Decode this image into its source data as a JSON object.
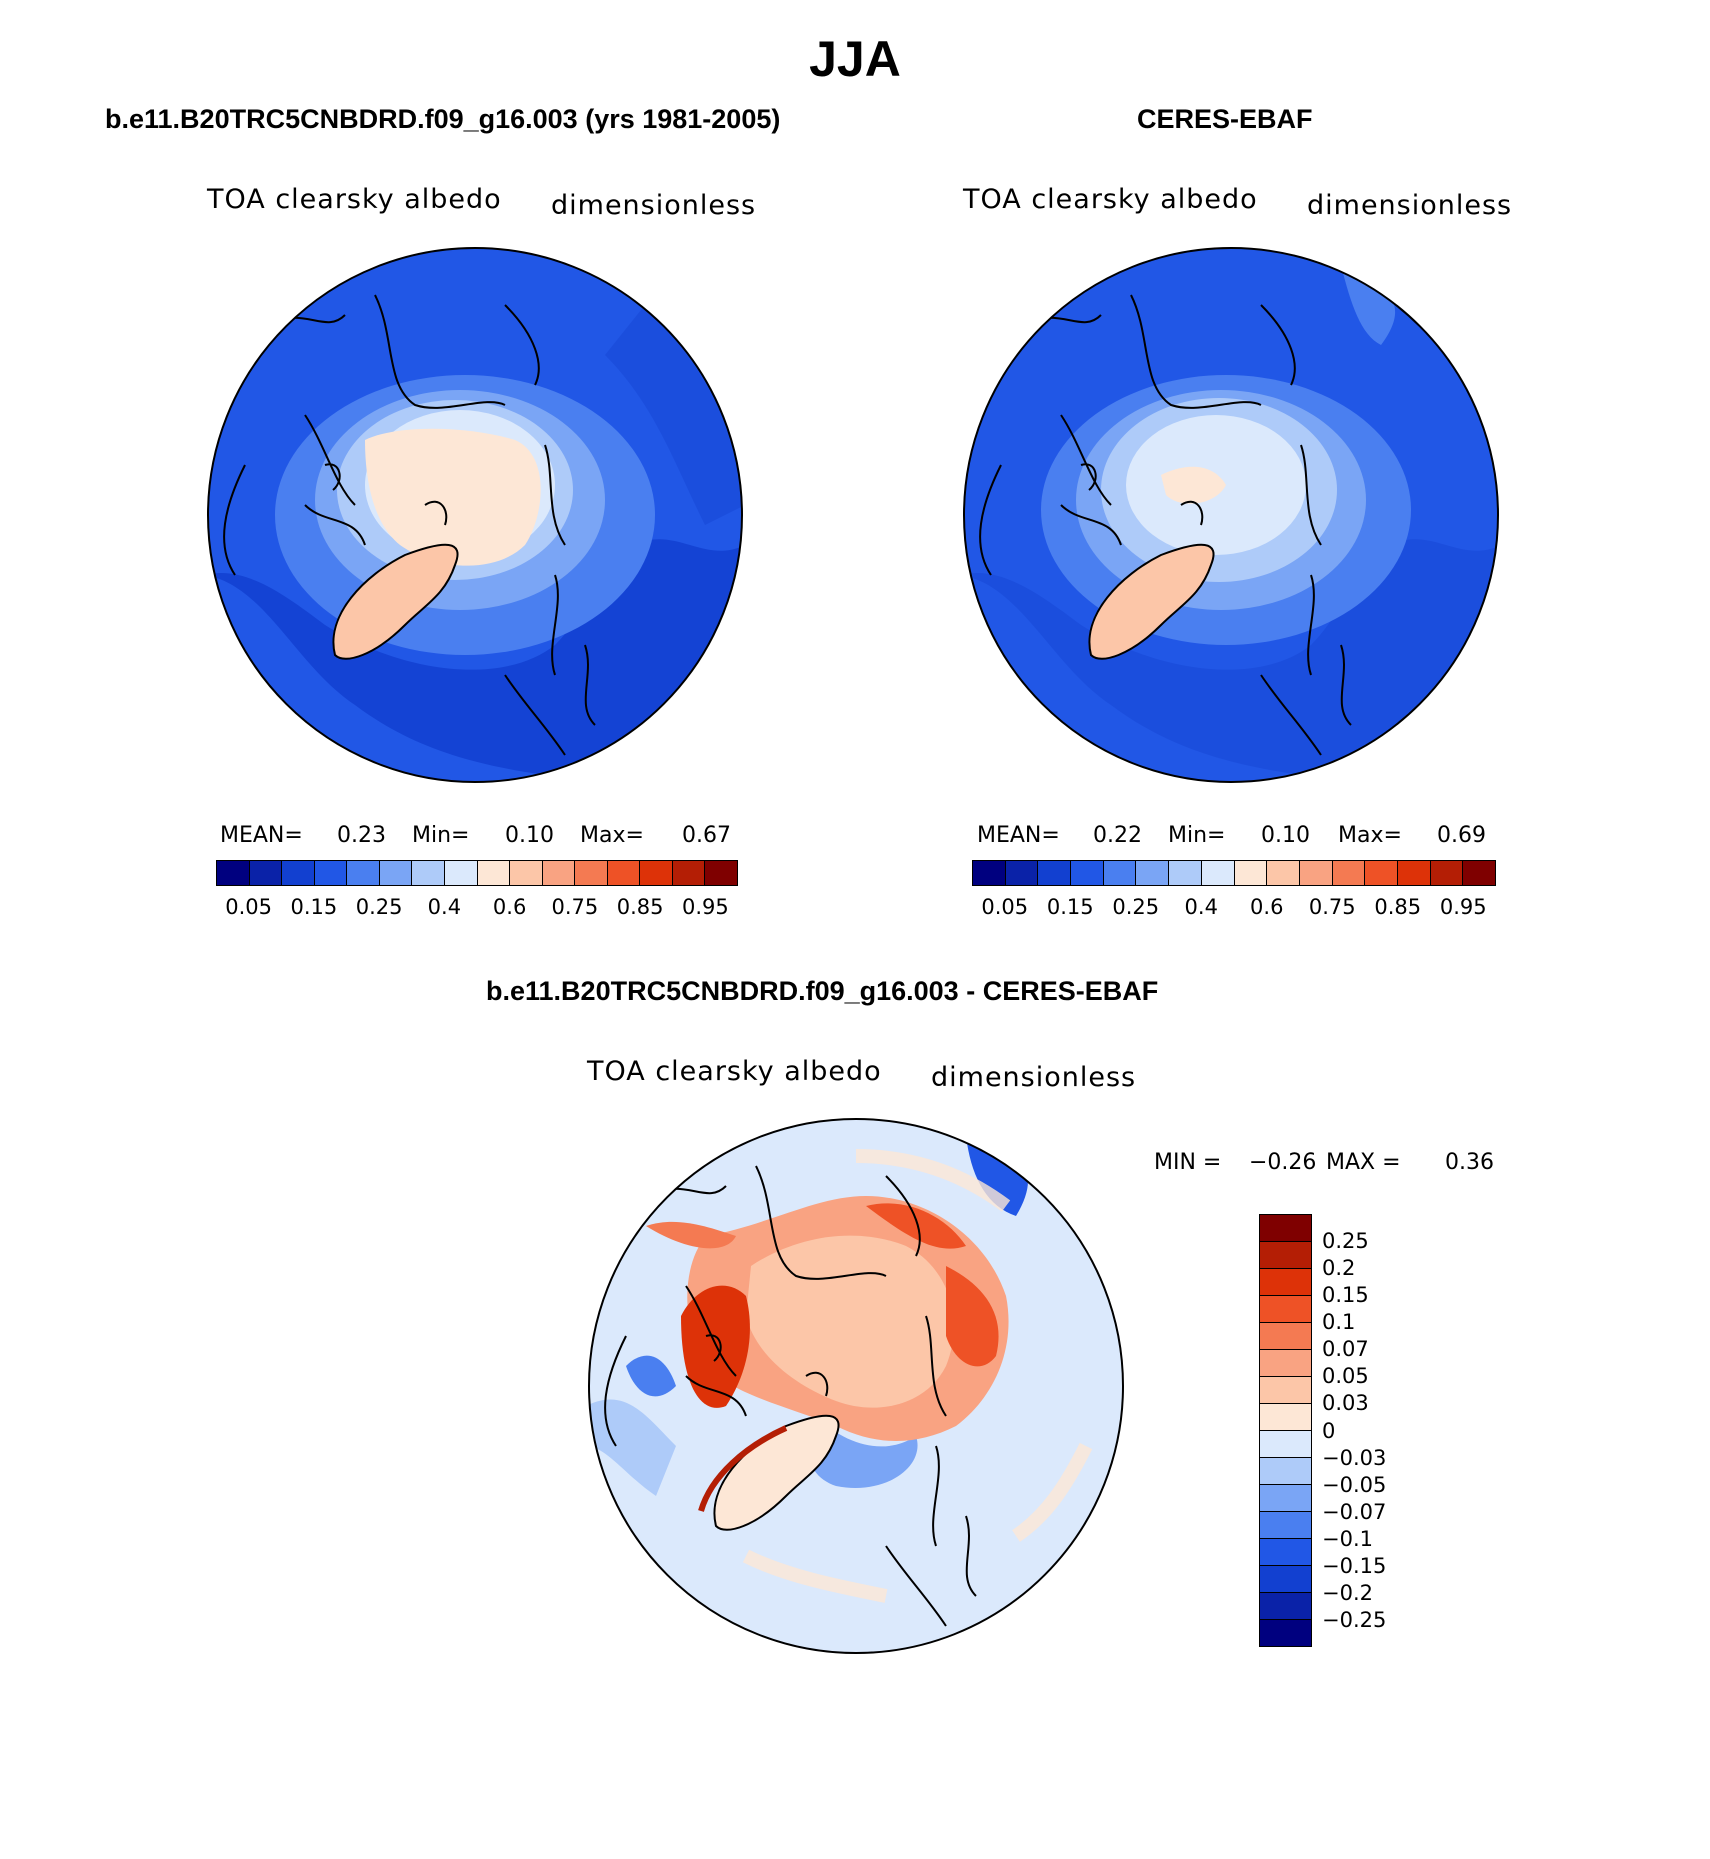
{
  "figure": {
    "title": "JJA"
  },
  "panels": [
    {
      "title": "b.e11.B20TRC5CNBDRD.f09_g16.003 (yrs 1981-2005)",
      "variable": "TOA clearsky albedo",
      "units": "dimensionless",
      "stats": {
        "mean_label": "MEAN=",
        "mean": "0.23",
        "min_label": "Min=",
        "min": "0.10",
        "max_label": "Max=",
        "max": "0.67"
      }
    },
    {
      "title": "CERES-EBAF",
      "variable": "TOA clearsky albedo",
      "units": "dimensionless",
      "stats": {
        "mean_label": "MEAN=",
        "mean": "0.22",
        "min_label": "Min=",
        "min": "0.10",
        "max_label": "Max=",
        "max": "0.69"
      }
    },
    {
      "title": "b.e11.B20TRC5CNBDRD.f09_g16.003 - CERES-EBAF",
      "variable": "TOA clearsky albedo",
      "units": "dimensionless",
      "stats": {
        "min_label": "MIN =",
        "min": "−0.26",
        "max_label": "MAX =",
        "max": "0.36"
      }
    }
  ],
  "colorbars": {
    "albedo": {
      "colors": [
        "#00007f",
        "#0a22a8",
        "#1240d0",
        "#2157e6",
        "#4a7ff0",
        "#7aa5f5",
        "#aecbf9",
        "#dbe9fc",
        "#fde7d6",
        "#fcc6a8",
        "#f9a382",
        "#f47a52",
        "#ee5226",
        "#dd3208",
        "#b41e05",
        "#7f0000"
      ],
      "ticks": [
        "0.05",
        "0.15",
        "0.25",
        "0.4",
        "0.6",
        "0.75",
        "0.85",
        "0.95"
      ]
    },
    "difference": {
      "colors_top_to_bottom": [
        "#7f0000",
        "#b41e05",
        "#dd3208",
        "#ee5226",
        "#f47a52",
        "#f9a382",
        "#fcc6a8",
        "#fde7d6",
        "#dbe9fc",
        "#aecbf9",
        "#7aa5f5",
        "#4a7ff0",
        "#2157e6",
        "#1240d0",
        "#0a22a8",
        "#00007f"
      ],
      "ticks_top_to_bottom": [
        "0.25",
        "0.2",
        "0.15",
        "0.1",
        "0.07",
        "0.05",
        "0.03",
        "0",
        "−0.03",
        "−0.05",
        "−0.07",
        "−0.1",
        "−0.15",
        "−0.2",
        "−0.25"
      ]
    }
  },
  "chart_data": [
    {
      "type": "heatmap",
      "projection": "north-polar-stereographic",
      "title": "b.e11.B20TRC5CNBDRD.f09_g16.003 (yrs 1981-2005)",
      "variable": "TOA clearsky albedo",
      "units": "dimensionless",
      "mean": 0.23,
      "min": 0.1,
      "max": 0.67,
      "levels": [
        0.05,
        0.1,
        0.15,
        0.2,
        0.25,
        0.3,
        0.35,
        0.4,
        0.5,
        0.6,
        0.7,
        0.75,
        0.8,
        0.85,
        0.9,
        0.95
      ]
    },
    {
      "type": "heatmap",
      "projection": "north-polar-stereographic",
      "title": "CERES-EBAF",
      "variable": "TOA clearsky albedo",
      "units": "dimensionless",
      "mean": 0.22,
      "min": 0.1,
      "max": 0.69,
      "levels": [
        0.05,
        0.1,
        0.15,
        0.2,
        0.25,
        0.3,
        0.35,
        0.4,
        0.5,
        0.6,
        0.7,
        0.75,
        0.8,
        0.85,
        0.9,
        0.95
      ]
    },
    {
      "type": "heatmap",
      "projection": "north-polar-stereographic",
      "title": "b.e11.B20TRC5CNBDRD.f09_g16.003 - CERES-EBAF",
      "variable": "TOA clearsky albedo",
      "units": "dimensionless",
      "min": -0.26,
      "max": 0.36,
      "levels": [
        -0.25,
        -0.2,
        -0.15,
        -0.1,
        -0.07,
        -0.05,
        -0.03,
        0,
        0.03,
        0.05,
        0.07,
        0.1,
        0.15,
        0.2,
        0.25
      ]
    }
  ]
}
